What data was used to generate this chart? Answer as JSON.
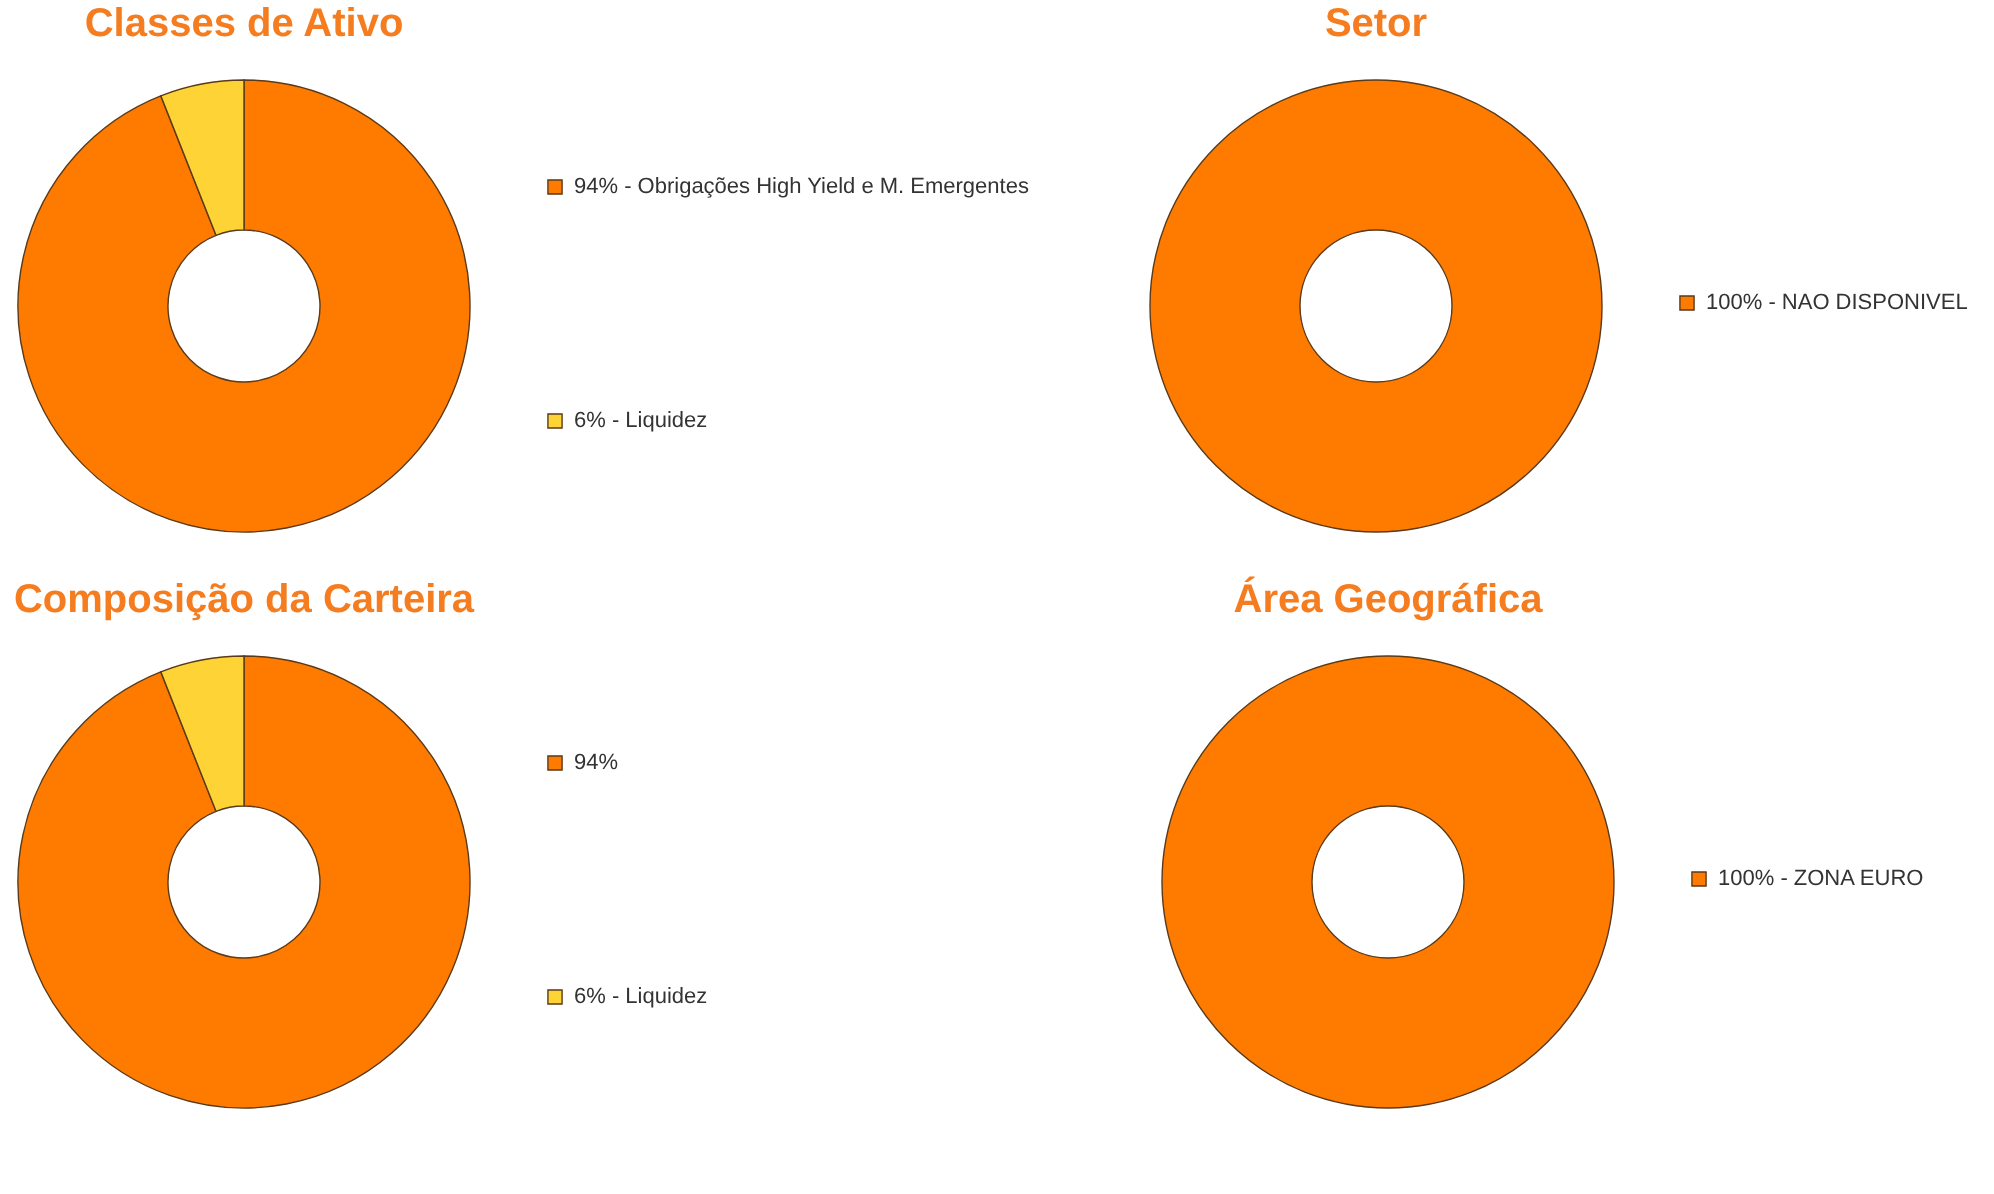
{
  "chart_data": [
    {
      "type": "donut",
      "title": "Classes de Ativo",
      "categories": [
        "94% -  Obrigações High Yield e M. Emergentes",
        "6% - Liquidez"
      ],
      "values": [
        94,
        6
      ],
      "colors": [
        "#ff7b00",
        "#fdd335"
      ],
      "legend": "right"
    },
    {
      "type": "donut",
      "title": "Setor",
      "categories": [
        "100% - NAO DISPONIVEL"
      ],
      "values": [
        100
      ],
      "colors": [
        "#ff7b00"
      ],
      "legend": "right"
    },
    {
      "type": "donut",
      "title": "Composição da Carteira",
      "categories": [
        null,
        "6% - Liquidez"
      ],
      "value_labels": [
        "94%",
        null
      ],
      "values": [
        94,
        6
      ],
      "colors": [
        "#ff7b00",
        "#fdd335"
      ],
      "legend": "right"
    },
    {
      "type": "donut",
      "title": "Área Geográfica",
      "categories": [
        "100% - ZONA EURO"
      ],
      "values": [
        100
      ],
      "colors": [
        "#ff7b00"
      ],
      "legend": "right"
    }
  ]
}
